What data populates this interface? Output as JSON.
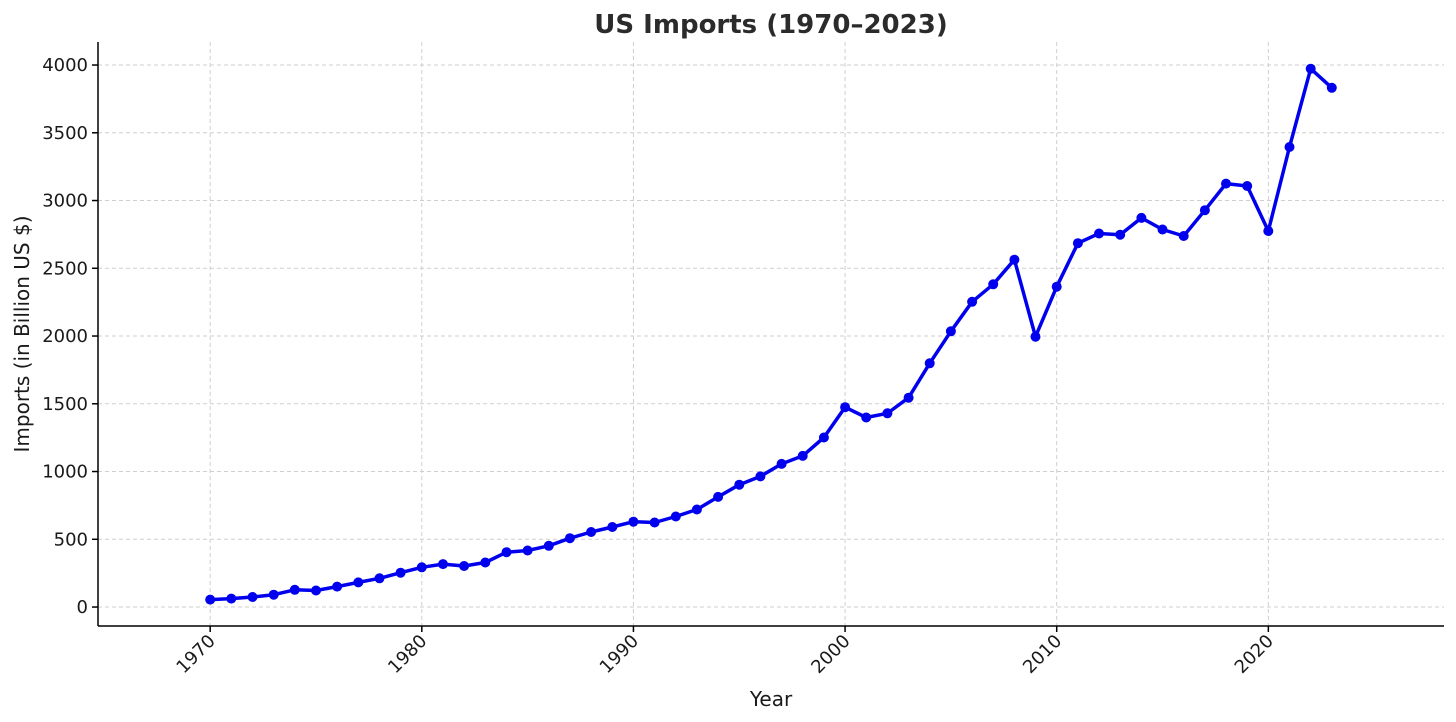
{
  "chart_data": {
    "type": "line",
    "title": "US Imports (1970–2023)",
    "xlabel": "Year",
    "ylabel": "Imports (in Billion US $)",
    "xlim": [
      1964.7,
      2028.3
    ],
    "ylim": [
      -140,
      4170
    ],
    "x_ticks": [
      1970,
      1980,
      1990,
      2000,
      2010,
      2020
    ],
    "y_ticks": [
      0,
      500,
      1000,
      1500,
      2000,
      2500,
      3000,
      3500,
      4000
    ],
    "grid": true,
    "line_color": "#0000ee",
    "x": [
      1970,
      1971,
      1972,
      1973,
      1974,
      1975,
      1976,
      1977,
      1978,
      1979,
      1980,
      1981,
      1982,
      1983,
      1984,
      1985,
      1986,
      1987,
      1988,
      1989,
      1990,
      1991,
      1992,
      1993,
      1994,
      1995,
      1996,
      1997,
      1998,
      1999,
      2000,
      2001,
      2002,
      2003,
      2004,
      2005,
      2006,
      2007,
      2008,
      2009,
      2010,
      2011,
      2012,
      2013,
      2014,
      2015,
      2016,
      2017,
      2018,
      2019,
      2020,
      2021,
      2022,
      2023
    ],
    "values": [
      55,
      62,
      74,
      91,
      127,
      122,
      151,
      182,
      212,
      253,
      293,
      317,
      303,
      329,
      405,
      417,
      452,
      508,
      554,
      591,
      630,
      624,
      668,
      720,
      813,
      903,
      964,
      1056,
      1115,
      1251,
      1475,
      1399,
      1430,
      1545,
      1799,
      2035,
      2253,
      2382,
      2563,
      1995,
      2364,
      2685,
      2757,
      2748,
      2872,
      2786,
      2738,
      2929,
      3125,
      3107,
      2775,
      3395,
      3973,
      3832
    ]
  }
}
